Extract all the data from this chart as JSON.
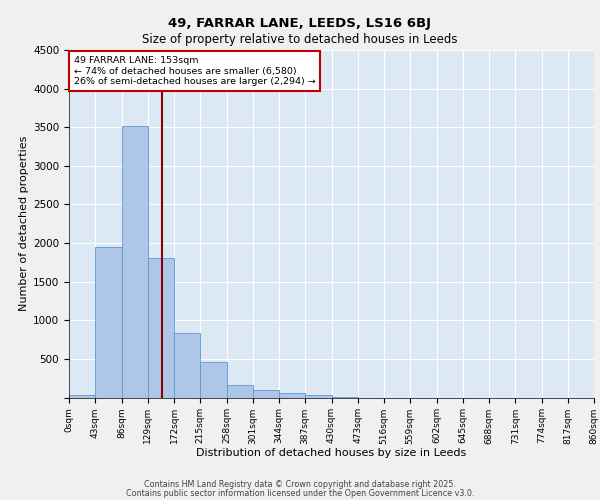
{
  "title1": "49, FARRAR LANE, LEEDS, LS16 6BJ",
  "title2": "Size of property relative to detached houses in Leeds",
  "xlabel": "Distribution of detached houses by size in Leeds",
  "ylabel": "Number of detached properties",
  "bin_labels": [
    "0sqm",
    "43sqm",
    "86sqm",
    "129sqm",
    "172sqm",
    "215sqm",
    "258sqm",
    "301sqm",
    "344sqm",
    "387sqm",
    "430sqm",
    "473sqm",
    "516sqm",
    "559sqm",
    "602sqm",
    "645sqm",
    "688sqm",
    "731sqm",
    "774sqm",
    "817sqm",
    "860sqm"
  ],
  "bar_values": [
    30,
    1950,
    3520,
    1810,
    840,
    455,
    160,
    95,
    55,
    30,
    10,
    0,
    0,
    0,
    0,
    0,
    0,
    0,
    0,
    0
  ],
  "bin_edges": [
    0,
    43,
    86,
    129,
    172,
    215,
    258,
    301,
    344,
    387,
    430,
    473,
    516,
    559,
    602,
    645,
    688,
    731,
    774,
    817,
    860
  ],
  "bar_color": "#aec6e8",
  "bar_edge_color": "#5b9bd5",
  "property_size": 153,
  "vline_color": "#8b0000",
  "annotation_text": "49 FARRAR LANE: 153sqm\n← 74% of detached houses are smaller (6,580)\n26% of semi-detached houses are larger (2,294) →",
  "annotation_box_color": "#ffffff",
  "annotation_edge_color": "#c00000",
  "ylim": [
    0,
    4500
  ],
  "background_color": "#dce9f5",
  "grid_color": "#ffffff",
  "footer1": "Contains HM Land Registry data © Crown copyright and database right 2025.",
  "footer2": "Contains public sector information licensed under the Open Government Licence v3.0."
}
